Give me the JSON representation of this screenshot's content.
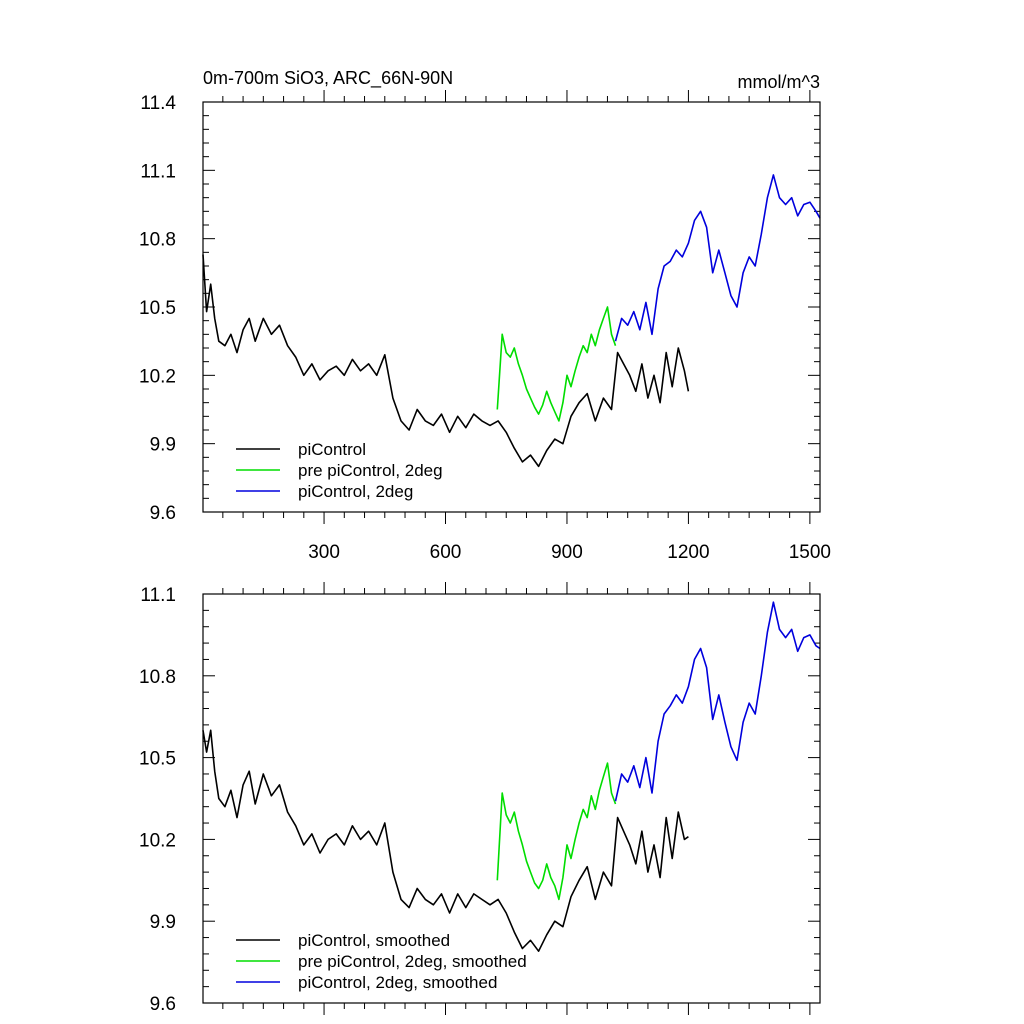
{
  "chart_data": [
    {
      "type": "line",
      "title": "0m-700m SiO3, ARC_66N-90N",
      "units": "mmol/m^3",
      "xlabel": "",
      "ylabel": "",
      "xlim": [
        1,
        1525
      ],
      "ylim": [
        9.6,
        11.4
      ],
      "xticks": [
        300,
        600,
        900,
        1200,
        1500
      ],
      "xtick_labels": [
        "300",
        "600",
        "900",
        "1200",
        "1500"
      ],
      "yticks": [
        9.6,
        9.9,
        10.2,
        10.5,
        10.8,
        11.1,
        11.4
      ],
      "ytick_labels": [
        "9.6",
        "9.9",
        "10.2",
        "10.5",
        "10.8",
        "11.1",
        "11.4"
      ],
      "legend_position": "bottom-left",
      "series": [
        {
          "name": "piControl",
          "color": "#000000",
          "x": [
            1,
            10,
            20,
            30,
            40,
            55,
            70,
            85,
            100,
            115,
            130,
            150,
            170,
            190,
            210,
            230,
            250,
            270,
            290,
            310,
            330,
            350,
            370,
            390,
            410,
            430,
            450,
            470,
            490,
            510,
            530,
            550,
            570,
            590,
            610,
            630,
            650,
            670,
            690,
            710,
            730,
            750,
            770,
            790,
            810,
            830,
            850,
            870,
            890,
            910,
            930,
            950,
            970,
            990,
            1010,
            1025,
            1040,
            1055,
            1070,
            1085,
            1100,
            1115,
            1130,
            1145,
            1160,
            1175,
            1190,
            1200
          ],
          "y": [
            10.73,
            10.48,
            10.6,
            10.45,
            10.35,
            10.33,
            10.38,
            10.3,
            10.4,
            10.45,
            10.35,
            10.45,
            10.38,
            10.42,
            10.33,
            10.28,
            10.2,
            10.25,
            10.18,
            10.22,
            10.24,
            10.2,
            10.27,
            10.22,
            10.25,
            10.2,
            10.29,
            10.1,
            10.0,
            9.96,
            10.05,
            10.0,
            9.98,
            10.03,
            9.95,
            10.02,
            9.97,
            10.03,
            10.0,
            9.98,
            10.0,
            9.95,
            9.88,
            9.82,
            9.85,
            9.8,
            9.87,
            9.92,
            9.9,
            10.02,
            10.08,
            10.12,
            10.0,
            10.1,
            10.05,
            10.3,
            10.25,
            10.2,
            10.13,
            10.25,
            10.1,
            10.2,
            10.08,
            10.3,
            10.15,
            10.32,
            10.22,
            10.13
          ]
        },
        {
          "name": "pre piControl, 2deg",
          "color": "#00dd00",
          "x": [
            728,
            740,
            750,
            760,
            770,
            780,
            790,
            800,
            810,
            820,
            830,
            840,
            850,
            860,
            870,
            880,
            890,
            900,
            910,
            920,
            930,
            940,
            950,
            960,
            970,
            980,
            990,
            1000,
            1010,
            1020
          ],
          "y": [
            10.05,
            10.38,
            10.3,
            10.28,
            10.32,
            10.25,
            10.2,
            10.14,
            10.1,
            10.06,
            10.03,
            10.07,
            10.13,
            10.08,
            10.04,
            10.0,
            10.08,
            10.2,
            10.15,
            10.22,
            10.28,
            10.33,
            10.3,
            10.38,
            10.33,
            10.4,
            10.45,
            10.5,
            10.38,
            10.33
          ]
        },
        {
          "name": "piControl, 2deg",
          "color": "#0000dd",
          "x": [
            1020,
            1035,
            1050,
            1065,
            1080,
            1095,
            1110,
            1125,
            1140,
            1155,
            1170,
            1185,
            1200,
            1215,
            1230,
            1245,
            1260,
            1275,
            1290,
            1305,
            1320,
            1335,
            1350,
            1365,
            1380,
            1395,
            1410,
            1425,
            1440,
            1455,
            1470,
            1485,
            1500,
            1515,
            1525
          ],
          "y": [
            10.35,
            10.45,
            10.42,
            10.48,
            10.4,
            10.52,
            10.38,
            10.58,
            10.68,
            10.7,
            10.75,
            10.72,
            10.78,
            10.88,
            10.92,
            10.85,
            10.65,
            10.75,
            10.65,
            10.55,
            10.5,
            10.65,
            10.72,
            10.68,
            10.82,
            10.98,
            11.08,
            10.98,
            10.95,
            10.98,
            10.9,
            10.95,
            10.96,
            10.92,
            10.89
          ]
        }
      ]
    },
    {
      "type": "line",
      "title": "",
      "xlabel": "",
      "ylabel": "",
      "xlim": [
        1,
        1525
      ],
      "ylim": [
        9.6,
        11.1
      ],
      "xticks": [
        300,
        600,
        900,
        1200,
        1500
      ],
      "yticks": [
        9.6,
        9.9,
        10.2,
        10.5,
        10.8,
        11.1
      ],
      "ytick_labels": [
        "9.6",
        "9.9",
        "10.2",
        "10.5",
        "10.8",
        "11.1"
      ],
      "legend_position": "bottom-left",
      "series": [
        {
          "name": "piControl, smoothed",
          "color": "#000000",
          "x": [
            1,
            10,
            20,
            30,
            40,
            55,
            70,
            85,
            100,
            115,
            130,
            150,
            170,
            190,
            210,
            230,
            250,
            270,
            290,
            310,
            330,
            350,
            370,
            390,
            410,
            430,
            450,
            470,
            490,
            510,
            530,
            550,
            570,
            590,
            610,
            630,
            650,
            670,
            690,
            710,
            730,
            750,
            770,
            790,
            810,
            830,
            850,
            870,
            890,
            910,
            930,
            950,
            970,
            990,
            1010,
            1025,
            1040,
            1055,
            1070,
            1085,
            1100,
            1115,
            1130,
            1145,
            1160,
            1175,
            1190,
            1200
          ],
          "y": [
            10.6,
            10.52,
            10.6,
            10.45,
            10.35,
            10.32,
            10.38,
            10.28,
            10.4,
            10.45,
            10.33,
            10.44,
            10.36,
            10.4,
            10.3,
            10.25,
            10.18,
            10.22,
            10.15,
            10.2,
            10.22,
            10.18,
            10.25,
            10.2,
            10.23,
            10.18,
            10.26,
            10.08,
            9.98,
            9.95,
            10.02,
            9.98,
            9.96,
            10.0,
            9.93,
            10.0,
            9.95,
            10.0,
            9.98,
            9.96,
            9.98,
            9.93,
            9.86,
            9.8,
            9.83,
            9.79,
            9.85,
            9.9,
            9.88,
            9.99,
            10.05,
            10.1,
            9.98,
            10.08,
            10.03,
            10.28,
            10.23,
            10.18,
            10.11,
            10.23,
            10.08,
            10.18,
            10.06,
            10.28,
            10.13,
            10.3,
            10.2,
            10.21
          ]
        },
        {
          "name": "pre piControl, 2deg, smoothed",
          "color": "#00dd00",
          "x": [
            728,
            740,
            750,
            760,
            770,
            780,
            790,
            800,
            810,
            820,
            830,
            840,
            850,
            860,
            870,
            880,
            890,
            900,
            910,
            920,
            930,
            940,
            950,
            960,
            970,
            980,
            990,
            1000,
            1010,
            1020
          ],
          "y": [
            10.05,
            10.37,
            10.29,
            10.26,
            10.3,
            10.23,
            10.18,
            10.12,
            10.08,
            10.04,
            10.02,
            10.05,
            10.11,
            10.06,
            10.03,
            9.98,
            10.06,
            10.18,
            10.13,
            10.2,
            10.26,
            10.31,
            10.28,
            10.36,
            10.31,
            10.38,
            10.43,
            10.48,
            10.37,
            10.33
          ]
        },
        {
          "name": "piControl, 2deg, smoothed",
          "color": "#0000dd",
          "x": [
            1020,
            1035,
            1050,
            1065,
            1080,
            1095,
            1110,
            1125,
            1140,
            1155,
            1170,
            1185,
            1200,
            1215,
            1230,
            1245,
            1260,
            1275,
            1290,
            1305,
            1320,
            1335,
            1350,
            1365,
            1380,
            1395,
            1410,
            1425,
            1440,
            1455,
            1470,
            1485,
            1500,
            1515,
            1525
          ],
          "y": [
            10.34,
            10.44,
            10.41,
            10.47,
            10.39,
            10.5,
            10.37,
            10.56,
            10.66,
            10.69,
            10.73,
            10.7,
            10.76,
            10.86,
            10.9,
            10.83,
            10.64,
            10.73,
            10.63,
            10.54,
            10.49,
            10.63,
            10.7,
            10.66,
            10.8,
            10.96,
            11.07,
            10.97,
            10.94,
            10.97,
            10.89,
            10.94,
            10.95,
            10.91,
            10.9
          ]
        }
      ]
    }
  ]
}
